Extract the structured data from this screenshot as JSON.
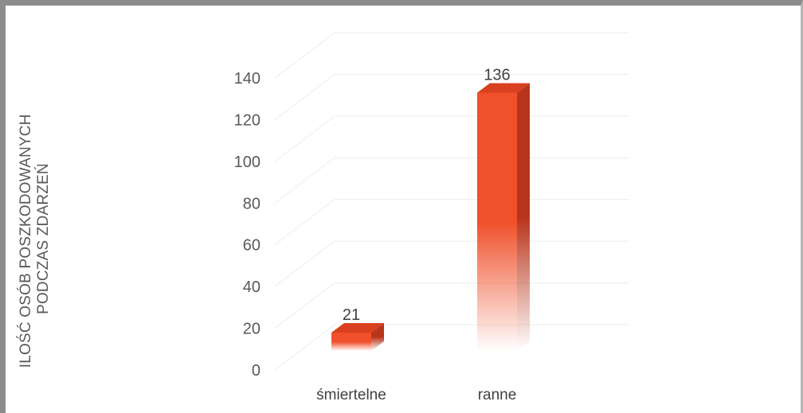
{
  "chart_data": {
    "type": "bar",
    "title": "",
    "categories": [
      "śmiertelne",
      "ranne"
    ],
    "values": [
      21,
      136
    ],
    "ylabel": [
      "ILOŚĆ OSÓB POSZKODOWANYCH",
      "PODCZAS ZDARZEŃ"
    ],
    "ylim": [
      0,
      140
    ],
    "yticks": [
      0,
      20,
      40,
      60,
      80,
      100,
      120,
      140
    ],
    "grid": true,
    "legend": "none",
    "colors": {
      "bar_front": "#f0502a",
      "bar_side": "#b8341a",
      "bar_top": "#d9401f",
      "grid": "#ececec",
      "axis_text": "#595959"
    }
  }
}
